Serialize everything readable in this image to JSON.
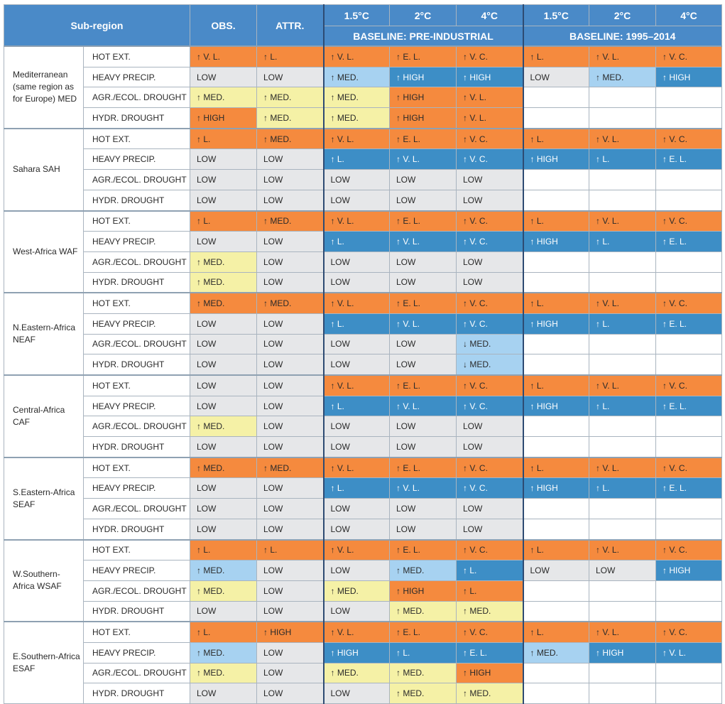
{
  "header": {
    "subregion": "Sub-region",
    "obs": "OBS.",
    "attr": "ATTR.",
    "warming": [
      "1.5°C",
      "2°C",
      "4°C",
      "1.5°C",
      "2°C",
      "4°C"
    ],
    "baseline_pre": "BASELINE: PRE-INDUSTRIAL",
    "baseline_recent": "BASELINE: 1995–2014"
  },
  "regions": [
    {
      "name": "Mediterranean (same region as for Europe) MED",
      "rows": [
        {
          "extreme": "HOT EXT.",
          "cells": [
            "↑ V. L.",
            "↑ L.",
            "↑ V. L.",
            "↑ E. L.",
            "↑ V. C.",
            "↑ L.",
            "↑ V. L.",
            "↑ V. C."
          ]
        },
        {
          "extreme": "HEAVY PRECIP.",
          "cells": [
            "LOW",
            "LOW",
            "↑ MED.",
            "↑ HIGH",
            "↑ HIGH",
            "LOW",
            "↑ MED.",
            "↑ HIGH"
          ]
        },
        {
          "extreme": "AGR./ECOL. DROUGHT",
          "cells": [
            "↑ MED.",
            "↑ MED.",
            "↑ MED.",
            "↑ HIGH",
            "↑ V. L.",
            "",
            "",
            ""
          ]
        },
        {
          "extreme": "HYDR. DROUGHT",
          "cells": [
            "↑ HIGH",
            "↑ MED.",
            "↑ MED.",
            "↑ HIGH",
            "↑ V. L.",
            "",
            "",
            ""
          ]
        }
      ]
    },
    {
      "name": "Sahara SAH",
      "rows": [
        {
          "extreme": "HOT EXT.",
          "cells": [
            "↑ L.",
            "↑ MED.",
            "↑ V. L.",
            "↑ E. L.",
            "↑ V. C.",
            "↑ L.",
            "↑ V. L.",
            "↑ V. C."
          ]
        },
        {
          "extreme": "HEAVY PRECIP.",
          "cells": [
            "LOW",
            "LOW",
            "↑ L.",
            "↑ V. L.",
            "↑ V. C.",
            "↑ HIGH",
            "↑ L.",
            "↑ E. L."
          ]
        },
        {
          "extreme": "AGR./ECOL. DROUGHT",
          "cells": [
            "LOW",
            "LOW",
            "LOW",
            "LOW",
            "LOW",
            "",
            "",
            ""
          ]
        },
        {
          "extreme": "HYDR. DROUGHT",
          "cells": [
            "LOW",
            "LOW",
            "LOW",
            "LOW",
            "LOW",
            "",
            "",
            ""
          ]
        }
      ]
    },
    {
      "name": "West-Africa WAF",
      "rows": [
        {
          "extreme": "HOT EXT.",
          "cells": [
            "↑ L.",
            "↑ MED.",
            "↑ V. L.",
            "↑ E. L.",
            "↑ V. C.",
            "↑ L.",
            "↑ V. L.",
            "↑ V. C."
          ]
        },
        {
          "extreme": "HEAVY PRECIP.",
          "cells": [
            "LOW",
            "LOW",
            "↑ L.",
            "↑ V. L.",
            "↑ V. C.",
            "↑ HIGH",
            "↑ L.",
            "↑ E. L."
          ]
        },
        {
          "extreme": "AGR./ECOL. DROUGHT",
          "cells": [
            "↑ MED.",
            "LOW",
            "LOW",
            "LOW",
            "LOW",
            "",
            "",
            ""
          ]
        },
        {
          "extreme": "HYDR. DROUGHT",
          "cells": [
            "↑ MED.",
            "LOW",
            "LOW",
            "LOW",
            "LOW",
            "",
            "",
            ""
          ]
        }
      ]
    },
    {
      "name": "N.Eastern-Africa NEAF",
      "rows": [
        {
          "extreme": "HOT EXT.",
          "cells": [
            "↑ MED.",
            "↑ MED.",
            "↑ V. L.",
            "↑ E. L.",
            "↑ V. C.",
            "↑ L.",
            "↑ V. L.",
            "↑ V. C."
          ]
        },
        {
          "extreme": "HEAVY PRECIP.",
          "cells": [
            "LOW",
            "LOW",
            "↑ L.",
            "↑ V. L.",
            "↑ V. C.",
            "↑ HIGH",
            "↑ L.",
            "↑ E. L."
          ]
        },
        {
          "extreme": "AGR./ECOL. DROUGHT",
          "cells": [
            "LOW",
            "LOW",
            "LOW",
            "LOW",
            "↓ MED.",
            "",
            "",
            ""
          ]
        },
        {
          "extreme": "HYDR. DROUGHT",
          "cells": [
            "LOW",
            "LOW",
            "LOW",
            "LOW",
            "↓ MED.",
            "",
            "",
            ""
          ]
        }
      ]
    },
    {
      "name": "Central-Africa CAF",
      "rows": [
        {
          "extreme": "HOT EXT.",
          "cells": [
            "LOW",
            "LOW",
            "↑ V. L.",
            "↑ E. L.",
            "↑ V. C.",
            "↑ L.",
            "↑ V. L.",
            "↑ V. C."
          ]
        },
        {
          "extreme": "HEAVY PRECIP.",
          "cells": [
            "LOW",
            "LOW",
            "↑ L.",
            "↑ V. L.",
            "↑ V. C.",
            "↑ HIGH",
            "↑ L.",
            "↑ E. L."
          ]
        },
        {
          "extreme": "AGR./ECOL. DROUGHT",
          "cells": [
            "↑ MED.",
            "LOW",
            "LOW",
            "LOW",
            "LOW",
            "",
            "",
            ""
          ]
        },
        {
          "extreme": "HYDR. DROUGHT",
          "cells": [
            "LOW",
            "LOW",
            "LOW",
            "LOW",
            "LOW",
            "",
            "",
            ""
          ]
        }
      ]
    },
    {
      "name": "S.Eastern-Africa SEAF",
      "rows": [
        {
          "extreme": "HOT EXT.",
          "cells": [
            "↑ MED.",
            "↑ MED.",
            "↑ V. L.",
            "↑ E. L.",
            "↑ V. C.",
            "↑ L.",
            "↑ V. L.",
            "↑ V. C."
          ]
        },
        {
          "extreme": "HEAVY PRECIP.",
          "cells": [
            "LOW",
            "LOW",
            "↑ L.",
            "↑ V. L.",
            "↑ V. C.",
            "↑ HIGH",
            "↑ L.",
            "↑ E. L."
          ]
        },
        {
          "extreme": "AGR./ECOL. DROUGHT",
          "cells": [
            "LOW",
            "LOW",
            "LOW",
            "LOW",
            "LOW",
            "",
            "",
            ""
          ]
        },
        {
          "extreme": "HYDR. DROUGHT",
          "cells": [
            "LOW",
            "LOW",
            "LOW",
            "LOW",
            "LOW",
            "",
            "",
            ""
          ]
        }
      ]
    },
    {
      "name": "W.Southern-Africa WSAF",
      "rows": [
        {
          "extreme": "HOT EXT.",
          "cells": [
            "↑ L.",
            "↑ L.",
            "↑ V. L.",
            "↑ E. L.",
            "↑ V. C.",
            "↑ L.",
            "↑ V. L.",
            "↑ V. C."
          ]
        },
        {
          "extreme": "HEAVY PRECIP.",
          "cells": [
            "↑ MED.",
            "LOW",
            "LOW",
            "↑ MED.",
            "↑ L.",
            "LOW",
            "LOW",
            "↑ HIGH"
          ]
        },
        {
          "extreme": "AGR./ECOL. DROUGHT",
          "cells": [
            "↑ MED.",
            "LOW",
            "↑ MED.",
            "↑ HIGH",
            "↑ L.",
            "",
            "",
            ""
          ]
        },
        {
          "extreme": "HYDR. DROUGHT",
          "cells": [
            "LOW",
            "LOW",
            "LOW",
            "↑ MED.",
            "↑ MED.",
            "",
            "",
            ""
          ]
        }
      ]
    },
    {
      "name": "E.Southern-Africa ESAF",
      "rows": [
        {
          "extreme": "HOT EXT.",
          "cells": [
            "↑ L.",
            "↑ HIGH",
            "↑ V. L.",
            "↑ E. L.",
            "↑ V. C.",
            "↑ L.",
            "↑ V. L.",
            "↑ V. C."
          ]
        },
        {
          "extreme": "HEAVY PRECIP.",
          "cells": [
            "↑ MED.",
            "LOW",
            "↑ HIGH",
            "↑ L.",
            "↑ E. L.",
            "↑ MED.",
            "↑ HIGH",
            "↑ V. L."
          ]
        },
        {
          "extreme": "AGR./ECOL. DROUGHT",
          "cells": [
            "↑ MED.",
            "LOW",
            "↑ MED.",
            "↑ MED.",
            "↑ HIGH",
            "",
            "",
            ""
          ]
        },
        {
          "extreme": "HYDR. DROUGHT",
          "cells": [
            "LOW",
            "LOW",
            "LOW",
            "↑ MED.",
            "↑ MED.",
            "",
            "",
            ""
          ]
        }
      ]
    }
  ]
}
